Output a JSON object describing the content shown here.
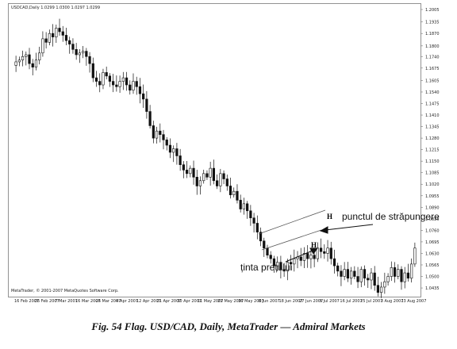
{
  "caption": "Fig. 54 Flag. USD/CAD, Daily, MetaTrader — Admiral Markets",
  "chart_data": {
    "type": "candlestick",
    "symbol_header": "USDCAD,Daily  1.0299 1.0300 1.0297 1.0299",
    "copyright": "MetaTrader, © 2001-2007 MetaQuotes Software Corp.",
    "ylim": [
      1.0395,
      1.2005
    ],
    "y_ticks": [
      "1.2005",
      "1.1935",
      "1.1870",
      "1.1800",
      "1.1740",
      "1.1675",
      "1.1605",
      "1.1540",
      "1.1475",
      "1.1410",
      "1.1345",
      "1.1280",
      "1.1215",
      "1.1150",
      "1.1085",
      "1.1020",
      "1.0955",
      "1.0890",
      "1.0825",
      "1.0760",
      "1.0695",
      "1.0630",
      "1.0565",
      "1.0500",
      "1.0435"
    ],
    "x_ticks": [
      "26 Feb 2007",
      "7 Mar 2007",
      "16 Mar 2007",
      "26 Mar 2007",
      "4 Apr 2007",
      "12 Apr 2007",
      "21 Apr 2007",
      "30 Apr 2007",
      "11 May 2007",
      "21 May 2007",
      "30 May 2007",
      "8 Jun 2007",
      "18 Jun 2007",
      "27 Jun 2007",
      "6 Jul 2007",
      "16 Jul 2007",
      "25 Jul 2007",
      "3 Aug 2007",
      "13 Aug 2007"
    ],
    "x_first_label": "16 Feb 2007",
    "closes": [
      1.171,
      1.172,
      1.174,
      1.175,
      1.17,
      1.168,
      1.172,
      1.176,
      1.184,
      1.182,
      1.187,
      1.185,
      1.19,
      1.188,
      1.186,
      1.183,
      1.181,
      1.178,
      1.175,
      1.176,
      1.177,
      1.174,
      1.17,
      1.162,
      1.16,
      1.158,
      1.165,
      1.163,
      1.16,
      1.158,
      1.157,
      1.16,
      1.162,
      1.158,
      1.155,
      1.16,
      1.157,
      1.153,
      1.15,
      1.143,
      1.135,
      1.128,
      1.132,
      1.13,
      1.127,
      1.124,
      1.12,
      1.122,
      1.118,
      1.113,
      1.11,
      1.108,
      1.111,
      1.106,
      1.101,
      1.104,
      1.108,
      1.106,
      1.111,
      1.104,
      1.101,
      1.108,
      1.105,
      1.101,
      1.096,
      1.098,
      1.093,
      1.088,
      1.091,
      1.087,
      1.083,
      1.08,
      1.075,
      1.07,
      1.066,
      1.062,
      1.06,
      1.056,
      1.058,
      1.054,
      1.053,
      1.058,
      1.057,
      1.06,
      1.061,
      1.059,
      1.063,
      1.06,
      1.062,
      1.06,
      1.066,
      1.064,
      1.063,
      1.066,
      1.06,
      1.056,
      1.053,
      1.05,
      1.054,
      1.049,
      1.053,
      1.05,
      1.047,
      1.054,
      1.049,
      1.048,
      1.052,
      1.045,
      1.041,
      1.044,
      1.047,
      1.05,
      1.055,
      1.05,
      1.054,
      1.047,
      1.052,
      1.049,
      1.057,
      1.066
    ],
    "annotations": {
      "breakout": "punctul de străpungere",
      "target": "ținta prețului",
      "top_marker": "H",
      "bottom_marker": "H"
    }
  }
}
